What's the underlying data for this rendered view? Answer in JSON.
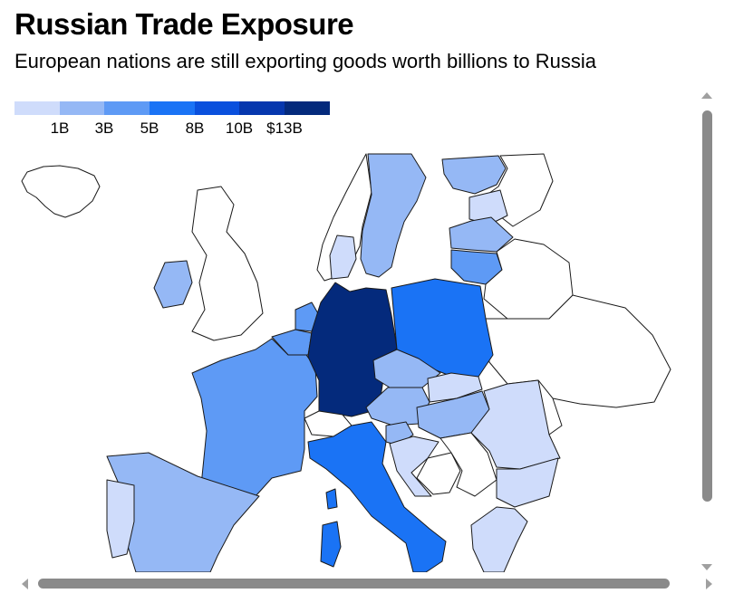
{
  "header": {
    "title": "Russian Trade Exposure",
    "subtitle": "European nations are still exporting goods worth billions to Russia"
  },
  "legend": {
    "colors": [
      "#cfdcfb",
      "#95b8f5",
      "#5e9af5",
      "#1a73f5",
      "#0a50dd",
      "#0637ae",
      "#042a7c"
    ],
    "ticks": [
      "1B",
      "3B",
      "5B",
      "8B",
      "10B",
      "$13B"
    ]
  },
  "map": {
    "countries": [
      {
        "name": "Germany",
        "bin": 6
      },
      {
        "name": "Poland",
        "bin": 3
      },
      {
        "name": "Italy",
        "bin": 3
      },
      {
        "name": "Lithuania",
        "bin": 2
      },
      {
        "name": "France",
        "bin": 2
      },
      {
        "name": "Netherlands",
        "bin": 2
      },
      {
        "name": "Belgium",
        "bin": 2
      },
      {
        "name": "Spain",
        "bin": 1
      },
      {
        "name": "Sweden",
        "bin": 1
      },
      {
        "name": "Czechia",
        "bin": 1
      },
      {
        "name": "Austria",
        "bin": 1
      },
      {
        "name": "Hungary",
        "bin": 1
      },
      {
        "name": "Ireland",
        "bin": 1
      },
      {
        "name": "Latvia",
        "bin": 1
      },
      {
        "name": "Finland",
        "bin": 1
      },
      {
        "name": "Slovenia",
        "bin": 1
      },
      {
        "name": "Portugal",
        "bin": 0
      },
      {
        "name": "Denmark",
        "bin": 0
      },
      {
        "name": "Estonia",
        "bin": 0
      },
      {
        "name": "Slovakia",
        "bin": 0
      },
      {
        "name": "Romania",
        "bin": 0
      },
      {
        "name": "Bulgaria",
        "bin": 0
      },
      {
        "name": "Greece",
        "bin": 0
      },
      {
        "name": "Croatia",
        "bin": 0
      },
      {
        "name": "Luxembourg",
        "bin": 0
      },
      {
        "name": "Switzerland",
        "bin": null
      },
      {
        "name": "United Kingdom",
        "bin": null
      },
      {
        "name": "Norway",
        "bin": null
      },
      {
        "name": "Iceland",
        "bin": null
      },
      {
        "name": "Belarus",
        "bin": null
      },
      {
        "name": "Ukraine",
        "bin": null
      },
      {
        "name": "Russia",
        "bin": null
      },
      {
        "name": "Serbia",
        "bin": null
      },
      {
        "name": "Bosnia and Herzegovina",
        "bin": null
      },
      {
        "name": "Moldova",
        "bin": null
      }
    ]
  }
}
